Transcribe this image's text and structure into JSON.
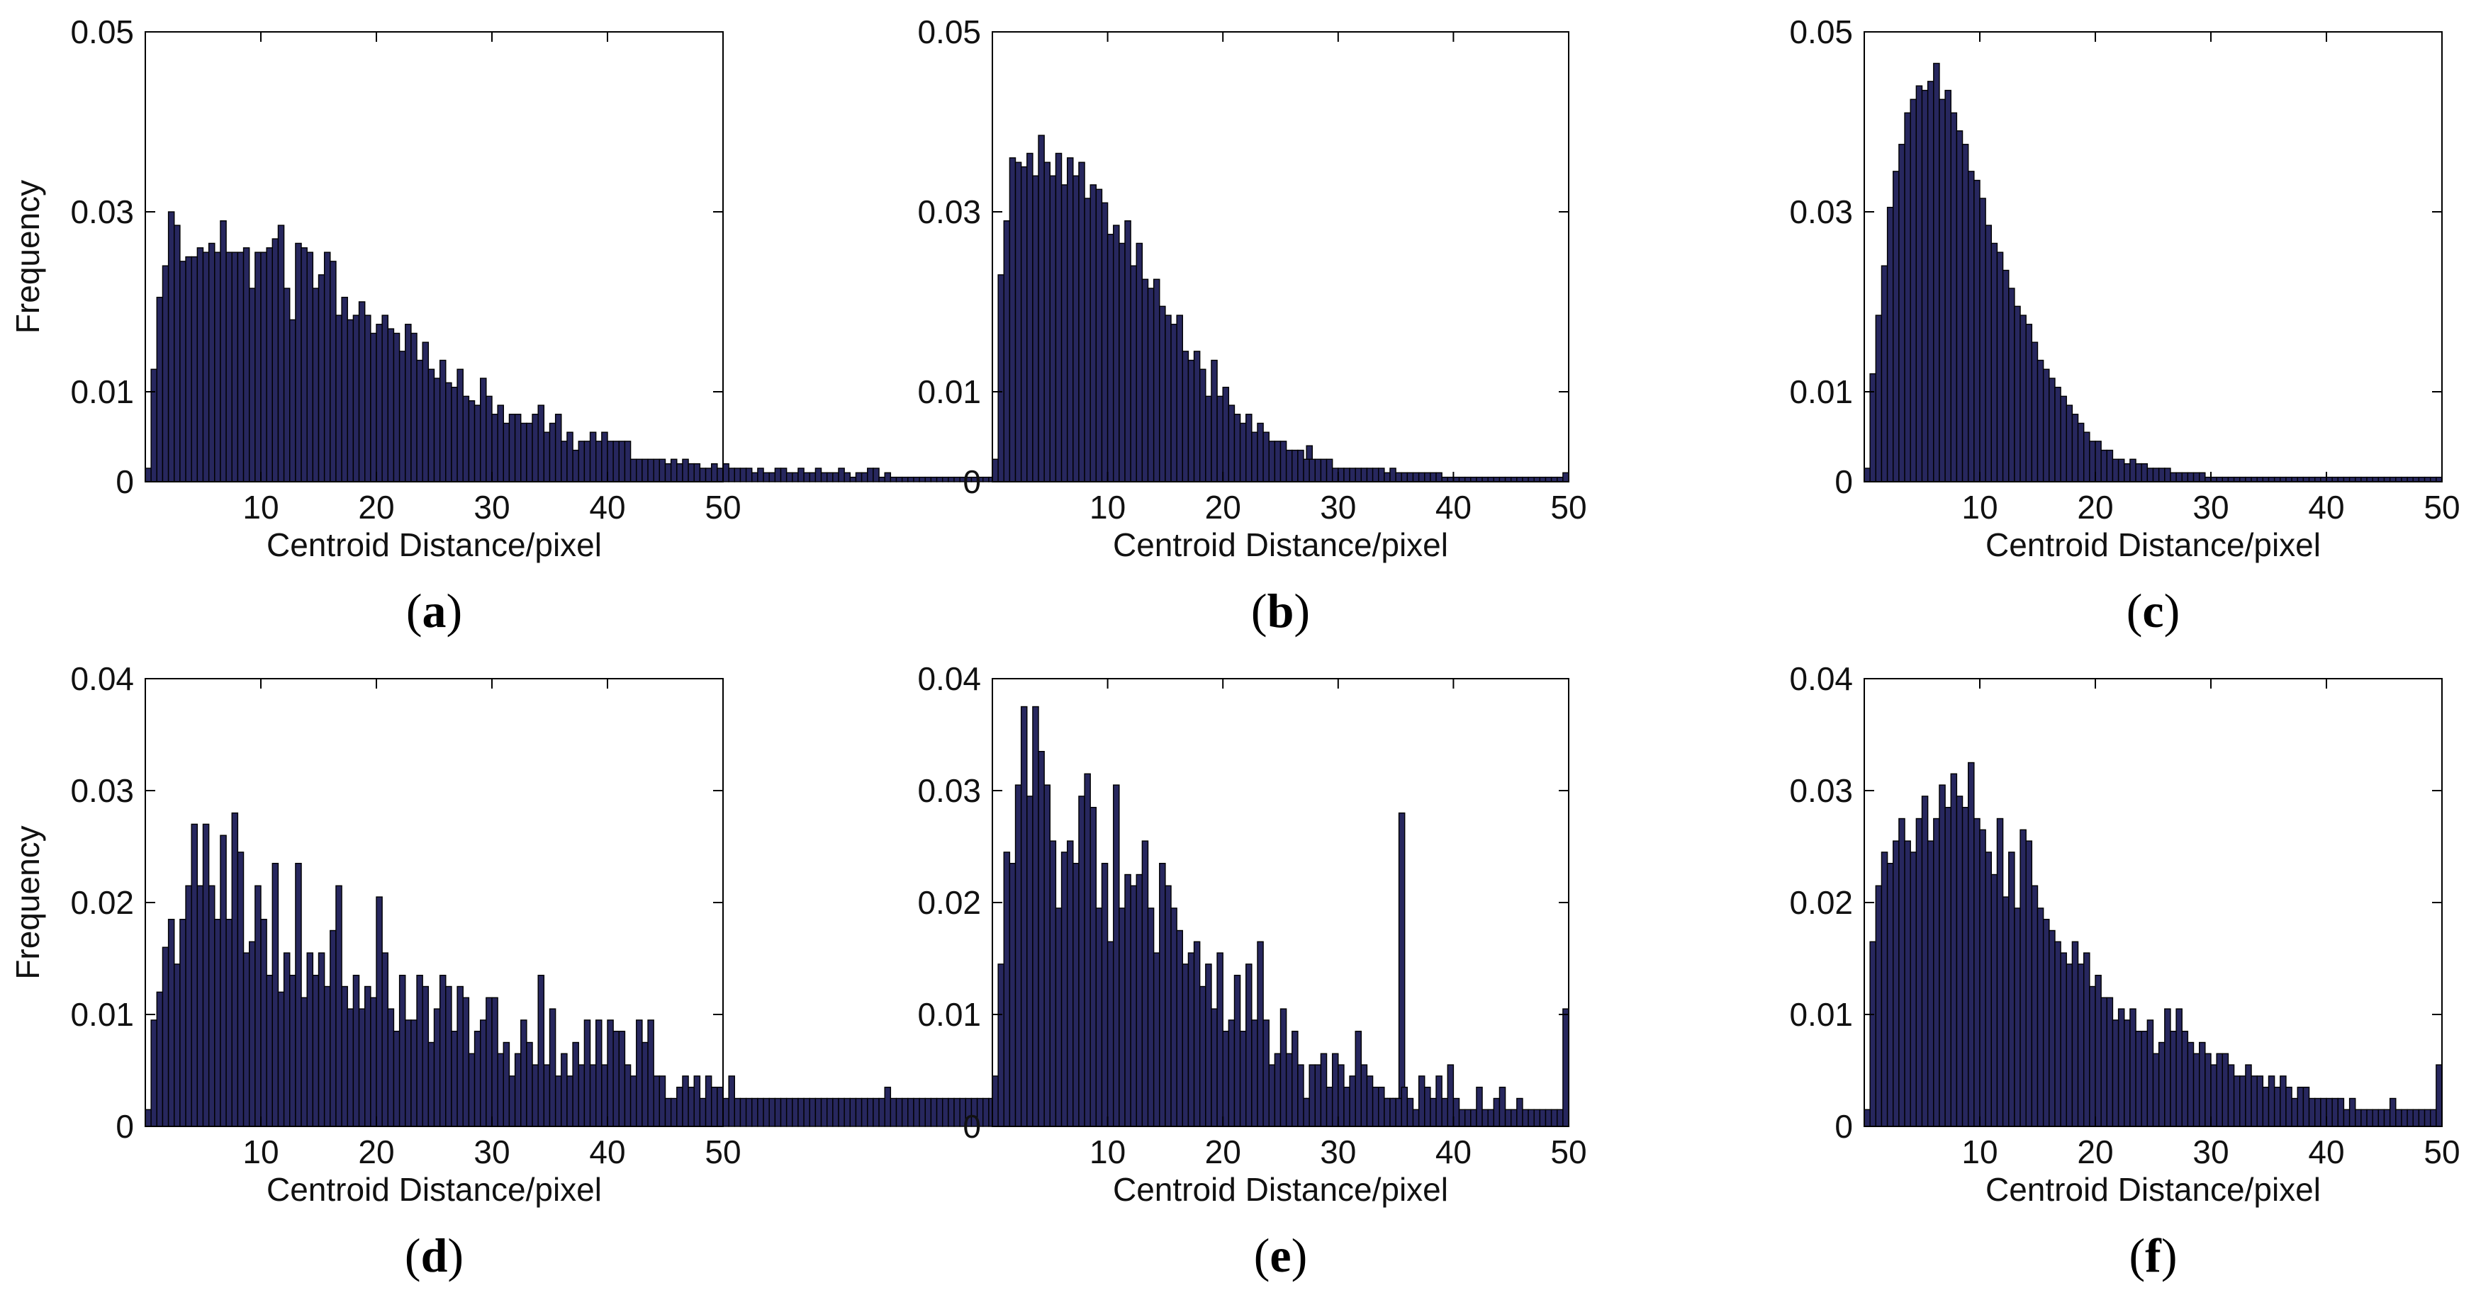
{
  "chart_data": [
    {
      "type": "bar",
      "panel": "a",
      "xlabel": "Centroid Distance/pixel",
      "ylabel": "Frequency",
      "xlim": [
        0,
        50
      ],
      "ylim": [
        0,
        0.05
      ],
      "xticks": [
        "10",
        "20",
        "30",
        "40",
        "50"
      ],
      "yticks": [
        "0",
        "0.01",
        "0.03",
        "0.05"
      ],
      "ytick_values": [
        0,
        0.01,
        0.03,
        0.05
      ],
      "bin_width": 0.5,
      "values": [
        0.0015,
        0.0125,
        0.0205,
        0.024,
        0.03,
        0.0285,
        0.0245,
        0.025,
        0.025,
        0.026,
        0.0255,
        0.0265,
        0.0255,
        0.029,
        0.0255,
        0.0255,
        0.0255,
        0.026,
        0.0215,
        0.0255,
        0.0255,
        0.026,
        0.027,
        0.0285,
        0.0215,
        0.018,
        0.0265,
        0.026,
        0.0255,
        0.0215,
        0.023,
        0.0255,
        0.0245,
        0.0185,
        0.0205,
        0.018,
        0.0185,
        0.02,
        0.0185,
        0.0165,
        0.0175,
        0.0185,
        0.017,
        0.0165,
        0.0145,
        0.0175,
        0.0165,
        0.0135,
        0.0155,
        0.0125,
        0.0115,
        0.0135,
        0.011,
        0.0105,
        0.0125,
        0.0095,
        0.009,
        0.0085,
        0.0115,
        0.0095,
        0.0075,
        0.0085,
        0.0065,
        0.0075,
        0.0075,
        0.0065,
        0.0065,
        0.0075,
        0.0085,
        0.0055,
        0.0065,
        0.0075,
        0.0045,
        0.0055,
        0.0035,
        0.0045,
        0.0045,
        0.0055,
        0.0045,
        0.0055,
        0.0045,
        0.0045,
        0.0045,
        0.0045,
        0.0025,
        0.0025,
        0.0025,
        0.0025,
        0.0025,
        0.0025,
        0.002,
        0.0025,
        0.002,
        0.0025,
        0.002,
        0.002,
        0.0015,
        0.0015,
        0.002,
        0.0015,
        0.002,
        0.0015,
        0.0015,
        0.0015,
        0.0015,
        0.001,
        0.0015,
        0.001,
        0.001,
        0.0015,
        0.0015,
        0.001,
        0.001,
        0.0015,
        0.001,
        0.001,
        0.0015,
        0.001,
        0.001,
        0.001,
        0.0015,
        0.001,
        0.0005,
        0.001,
        0.001,
        0.0015,
        0.0015,
        0.0005,
        0.001,
        0.0005,
        0.0005,
        0.0005,
        0.0005,
        0.0005,
        0.0005,
        0.0005,
        0.0005,
        0.0005,
        0.0005,
        0.0005,
        0.0005,
        0.0005,
        0.0005,
        0.0005,
        0.0005,
        0.0005,
        0.0005,
        0.0005,
        0.0005,
        0.0005,
        0.0005,
        0.0005,
        0.0005,
        0.0005,
        0.0005,
        0.0005,
        0.0005,
        0.0005,
        0.0005,
        0.0005,
        0.0005,
        0.0005,
        0.0005,
        0.0005,
        0.0005,
        0.0005,
        0.0005,
        0.0005,
        0.0005,
        0.0005,
        0.0005,
        0.0005,
        0.0005,
        0.0005,
        0.0005,
        0.0005,
        0.0005,
        0.0005,
        0.0005,
        0.0005,
        0.0005,
        0.0005,
        0.0005,
        0.0005,
        0.0005,
        0.0005,
        0.0005,
        0.0005,
        0.0005,
        0.0005,
        0.0005,
        0.0005,
        0.0005,
        0.0005,
        0.0005,
        0.0005,
        0.0005,
        0.0005,
        0.0005,
        0.0005,
        0.0005,
        0.004
      ]
    },
    {
      "type": "bar",
      "panel": "b",
      "xlabel": "Centroid Distance/pixel",
      "ylabel": "",
      "xlim": [
        0,
        50
      ],
      "ylim": [
        0,
        0.05
      ],
      "xticks": [
        "10",
        "20",
        "30",
        "40",
        "50"
      ],
      "yticks": [
        "0",
        "0.01",
        "0.03",
        "0.05"
      ],
      "ytick_values": [
        0,
        0.01,
        0.03,
        0.05
      ],
      "bin_width": 0.5,
      "values": [
        0.0025,
        0.023,
        0.029,
        0.036,
        0.0355,
        0.035,
        0.0365,
        0.034,
        0.0385,
        0.0355,
        0.034,
        0.0365,
        0.033,
        0.036,
        0.034,
        0.0355,
        0.0315,
        0.033,
        0.0325,
        0.031,
        0.0275,
        0.0285,
        0.0265,
        0.029,
        0.024,
        0.0265,
        0.0225,
        0.0215,
        0.0225,
        0.0195,
        0.0185,
        0.0175,
        0.0185,
        0.0145,
        0.0135,
        0.0145,
        0.0125,
        0.0095,
        0.0135,
        0.0095,
        0.0105,
        0.0085,
        0.0075,
        0.0065,
        0.0075,
        0.0055,
        0.0065,
        0.0055,
        0.0045,
        0.0045,
        0.0045,
        0.0035,
        0.0035,
        0.0035,
        0.0025,
        0.0025,
        0.0025,
        0.0025,
        0.0025,
        0.0015,
        0.0015,
        0.0015,
        0.0015,
        0.0015,
        0.0015,
        0.0015,
        0.0015,
        0.0015,
        0.001,
        0.0015,
        0.001,
        0.001,
        0.001,
        0.001,
        0.001,
        0.001,
        0.001,
        0.001,
        0.0005,
        0.0005,
        0.0005,
        0.0005,
        0.0005,
        0.0005,
        0.0005,
        0.0005,
        0.0005,
        0.0005,
        0.0005,
        0.0005,
        0.0005,
        0.0005,
        0.0005,
        0.0005,
        0.0005,
        0.0005,
        0.0005,
        0.0005,
        0.0005,
        0.001
      ]
    },
    {
      "type": "bar",
      "panel": "c",
      "xlabel": "Centroid Distance/pixel",
      "ylabel": "",
      "xlim": [
        0,
        50
      ],
      "ylim": [
        0,
        0.05
      ],
      "xticks": [
        "10",
        "20",
        "30",
        "40",
        "50"
      ],
      "yticks": [
        "0",
        "0.01",
        "0.03",
        "0.05"
      ],
      "ytick_values": [
        0,
        0.01,
        0.03,
        0.05
      ],
      "bin_width": 0.5,
      "values": [
        0.0015,
        0.012,
        0.0185,
        0.024,
        0.0305,
        0.0345,
        0.0375,
        0.041,
        0.0425,
        0.044,
        0.0435,
        0.0445,
        0.0465,
        0.0425,
        0.0435,
        0.041,
        0.039,
        0.0375,
        0.0345,
        0.0335,
        0.0315,
        0.0285,
        0.0265,
        0.0255,
        0.0235,
        0.0215,
        0.0195,
        0.0185,
        0.0175,
        0.0155,
        0.0135,
        0.0125,
        0.0115,
        0.0105,
        0.0095,
        0.0085,
        0.0075,
        0.0065,
        0.0055,
        0.0045,
        0.0045,
        0.0035,
        0.0035,
        0.0025,
        0.0025,
        0.002,
        0.0025,
        0.002,
        0.002,
        0.0015,
        0.0015,
        0.0015,
        0.0015,
        0.001,
        0.001,
        0.001,
        0.001,
        0.001,
        0.001,
        0.0005,
        0.0005,
        0.0005,
        0.0005,
        0.0005,
        0.0005,
        0.0005,
        0.0005,
        0.0005,
        0.0005,
        0.0005,
        0.0005,
        0.0005,
        0.0005,
        0.0005,
        0.0005,
        0.0005,
        0.0005,
        0.0005,
        0.0005,
        0.0005,
        0.0005,
        0.0005,
        0.0005,
        0.0005,
        0.0005,
        0.0005,
        0.0005,
        0.0005,
        0.0005,
        0.0005,
        0.0005,
        0.0005,
        0.0005,
        0.0005,
        0.0005,
        0.0005,
        0.0005,
        0.0005,
        0.0005,
        0.0005
      ]
    },
    {
      "type": "bar",
      "panel": "d",
      "xlabel": "Centroid Distance/pixel",
      "ylabel": "Frequency",
      "xlim": [
        0,
        50
      ],
      "ylim": [
        0,
        0.04
      ],
      "xticks": [
        "10",
        "20",
        "30",
        "40",
        "50"
      ],
      "yticks": [
        "0",
        "0.01",
        "0.02",
        "0.03",
        "0.04"
      ],
      "ytick_values": [
        0,
        0.01,
        0.02,
        0.03,
        0.04
      ],
      "bin_width": 0.5,
      "values": [
        0.0015,
        0.0095,
        0.012,
        0.016,
        0.0185,
        0.0145,
        0.0185,
        0.0215,
        0.027,
        0.0215,
        0.027,
        0.0215,
        0.0185,
        0.026,
        0.0185,
        0.028,
        0.0245,
        0.0155,
        0.0165,
        0.0215,
        0.0185,
        0.0135,
        0.0235,
        0.012,
        0.0155,
        0.0135,
        0.0235,
        0.0115,
        0.0155,
        0.0135,
        0.0155,
        0.0125,
        0.0175,
        0.0215,
        0.0125,
        0.0105,
        0.0135,
        0.0105,
        0.0125,
        0.0115,
        0.0205,
        0.0155,
        0.0105,
        0.0085,
        0.0135,
        0.0095,
        0.0095,
        0.0135,
        0.0125,
        0.0075,
        0.0105,
        0.0135,
        0.0125,
        0.0085,
        0.0125,
        0.0115,
        0.0065,
        0.0085,
        0.0095,
        0.0115,
        0.0115,
        0.0065,
        0.0075,
        0.0045,
        0.0065,
        0.0095,
        0.0075,
        0.0055,
        0.0135,
        0.0055,
        0.0105,
        0.0045,
        0.0065,
        0.0045,
        0.0075,
        0.0055,
        0.0095,
        0.0055,
        0.0095,
        0.0055,
        0.0095,
        0.0085,
        0.0085,
        0.0055,
        0.0045,
        0.0095,
        0.0075,
        0.0095,
        0.0045,
        0.0045,
        0.0025,
        0.0025,
        0.0035,
        0.0045,
        0.0035,
        0.0045,
        0.0025,
        0.0045,
        0.0035,
        0.0035,
        0.0025,
        0.0045,
        0.0025,
        0.0025,
        0.0025,
        0.0025,
        0.0025,
        0.0025,
        0.0025,
        0.0025,
        0.0025,
        0.0025,
        0.0025,
        0.0025,
        0.0025,
        0.0025,
        0.0025,
        0.0025,
        0.0025,
        0.0025,
        0.0025,
        0.0025,
        0.0025,
        0.0025,
        0.0025,
        0.0025,
        0.0025,
        0.0025,
        0.0035,
        0.0025,
        0.0025,
        0.0025,
        0.0025,
        0.0025,
        0.0025,
        0.0025,
        0.0025,
        0.0025,
        0.0025,
        0.0025,
        0.0025,
        0.0025,
        0.0025,
        0.0025,
        0.0025,
        0.0025,
        0.0025,
        0.0025,
        0.0025,
        0.0025,
        0.0045,
        0.0025,
        0.0025,
        0.0025,
        0.0025,
        0.0025,
        0.0025,
        0.0025,
        0.0025,
        0.0025,
        0.0025,
        0.0025,
        0.0025,
        0.0025,
        0.0025,
        0.0025,
        0.0025,
        0.0025,
        0.0025,
        0.0025,
        0.0025,
        0.0025,
        0.0025,
        0.0025,
        0.0025,
        0.0025,
        0.0025,
        0.0025,
        0.0025,
        0.0025,
        0.0025,
        0.0025,
        0.0025,
        0.0025,
        0.0025,
        0.0025,
        0.0025,
        0.0025,
        0.0025,
        0.0025,
        0.0025,
        0.0025,
        0.0025,
        0.0025,
        0.0025,
        0.0025,
        0.0025,
        0.0025,
        0.0025,
        0.0025,
        0.0025,
        0.0025,
        0.0025,
        0.0025,
        0.0025,
        0.0025,
        0.0025,
        0.0025,
        0.0025,
        0.0025,
        0.0025,
        0.0025,
        0.0025,
        0.0025,
        0.0025,
        0.0025,
        0.0025,
        0.028
      ]
    },
    {
      "type": "bar",
      "panel": "e",
      "xlabel": "Centroid Distance/pixel",
      "ylabel": "",
      "xlim": [
        0,
        50
      ],
      "ylim": [
        0,
        0.04
      ],
      "xticks": [
        "10",
        "20",
        "30",
        "40",
        "50"
      ],
      "yticks": [
        "0",
        "0.01",
        "0.02",
        "0.03",
        "0.04"
      ],
      "ytick_values": [
        0,
        0.01,
        0.02,
        0.03,
        0.04
      ],
      "bin_width": 0.5,
      "values": [
        0.0045,
        0.0145,
        0.0245,
        0.0235,
        0.0305,
        0.0375,
        0.0295,
        0.0375,
        0.0335,
        0.0305,
        0.0255,
        0.0195,
        0.0245,
        0.0255,
        0.0235,
        0.0295,
        0.0315,
        0.0285,
        0.0195,
        0.0235,
        0.0165,
        0.0305,
        0.0195,
        0.0225,
        0.0215,
        0.0225,
        0.0255,
        0.0195,
        0.0155,
        0.0235,
        0.0215,
        0.0195,
        0.0175,
        0.0145,
        0.0155,
        0.0165,
        0.0125,
        0.0145,
        0.0105,
        0.0155,
        0.0085,
        0.0095,
        0.0135,
        0.0085,
        0.0145,
        0.0095,
        0.0165,
        0.0095,
        0.0055,
        0.0065,
        0.0105,
        0.0065,
        0.0085,
        0.0055,
        0.0025,
        0.0055,
        0.0055,
        0.0065,
        0.0035,
        0.0065,
        0.0055,
        0.0035,
        0.0045,
        0.0085,
        0.0055,
        0.0045,
        0.0035,
        0.0035,
        0.0025,
        0.0025,
        0.0025,
        0.0035,
        0.0025,
        0.0015,
        0.0045,
        0.0035,
        0.0025,
        0.0045,
        0.0025,
        0.0055,
        0.0025,
        0.0015,
        0.0015,
        0.0015,
        0.0035,
        0.0015,
        0.0015,
        0.0025,
        0.0035,
        0.0015,
        0.0015,
        0.0025,
        0.0015,
        0.0015,
        0.0015,
        0.0015,
        0.0015,
        0.0015,
        0.0015,
        0.0105
      ]
    },
    {
      "type": "bar",
      "panel": "f",
      "xlabel": "Centroid Distance/pixel",
      "ylabel": "",
      "xlim": [
        0,
        50
      ],
      "ylim": [
        0,
        0.04
      ],
      "xticks": [
        "10",
        "20",
        "30",
        "40",
        "50"
      ],
      "yticks": [
        "0",
        "0.01",
        "0.02",
        "0.03",
        "0.04"
      ],
      "ytick_values": [
        0,
        0.01,
        0.02,
        0.03,
        0.04
      ],
      "bin_width": 0.5,
      "values": [
        0.0015,
        0.0165,
        0.0215,
        0.0245,
        0.0235,
        0.0255,
        0.0275,
        0.0255,
        0.0245,
        0.0275,
        0.0295,
        0.0255,
        0.0275,
        0.0305,
        0.0285,
        0.0315,
        0.0295,
        0.0285,
        0.0325,
        0.0275,
        0.0265,
        0.0245,
        0.0225,
        0.0275,
        0.0205,
        0.0245,
        0.0195,
        0.0265,
        0.0255,
        0.0215,
        0.0195,
        0.0185,
        0.0175,
        0.0165,
        0.0155,
        0.0145,
        0.0165,
        0.0145,
        0.0155,
        0.0125,
        0.0135,
        0.0115,
        0.0115,
        0.0095,
        0.0105,
        0.0095,
        0.0105,
        0.0085,
        0.0085,
        0.0095,
        0.0065,
        0.0075,
        0.0105,
        0.0085,
        0.0105,
        0.0085,
        0.0075,
        0.0065,
        0.0075,
        0.0065,
        0.0055,
        0.0065,
        0.0065,
        0.0055,
        0.0045,
        0.0045,
        0.0055,
        0.0045,
        0.0045,
        0.0035,
        0.0045,
        0.0035,
        0.0045,
        0.0035,
        0.0025,
        0.0035,
        0.0035,
        0.0025,
        0.0025,
        0.0025,
        0.0025,
        0.0025,
        0.0025,
        0.0015,
        0.0025,
        0.0015,
        0.0015,
        0.0015,
        0.0015,
        0.0015,
        0.0015,
        0.0025,
        0.0015,
        0.0015,
        0.0015,
        0.0015,
        0.0015,
        0.0015,
        0.0015,
        0.0055
      ]
    }
  ],
  "panel_labels": [
    "a",
    "b",
    "c",
    "d",
    "e",
    "f"
  ],
  "colors": {
    "bar_fill": "#27275e",
    "bar_edge": "#000000",
    "axis": "#000000"
  }
}
